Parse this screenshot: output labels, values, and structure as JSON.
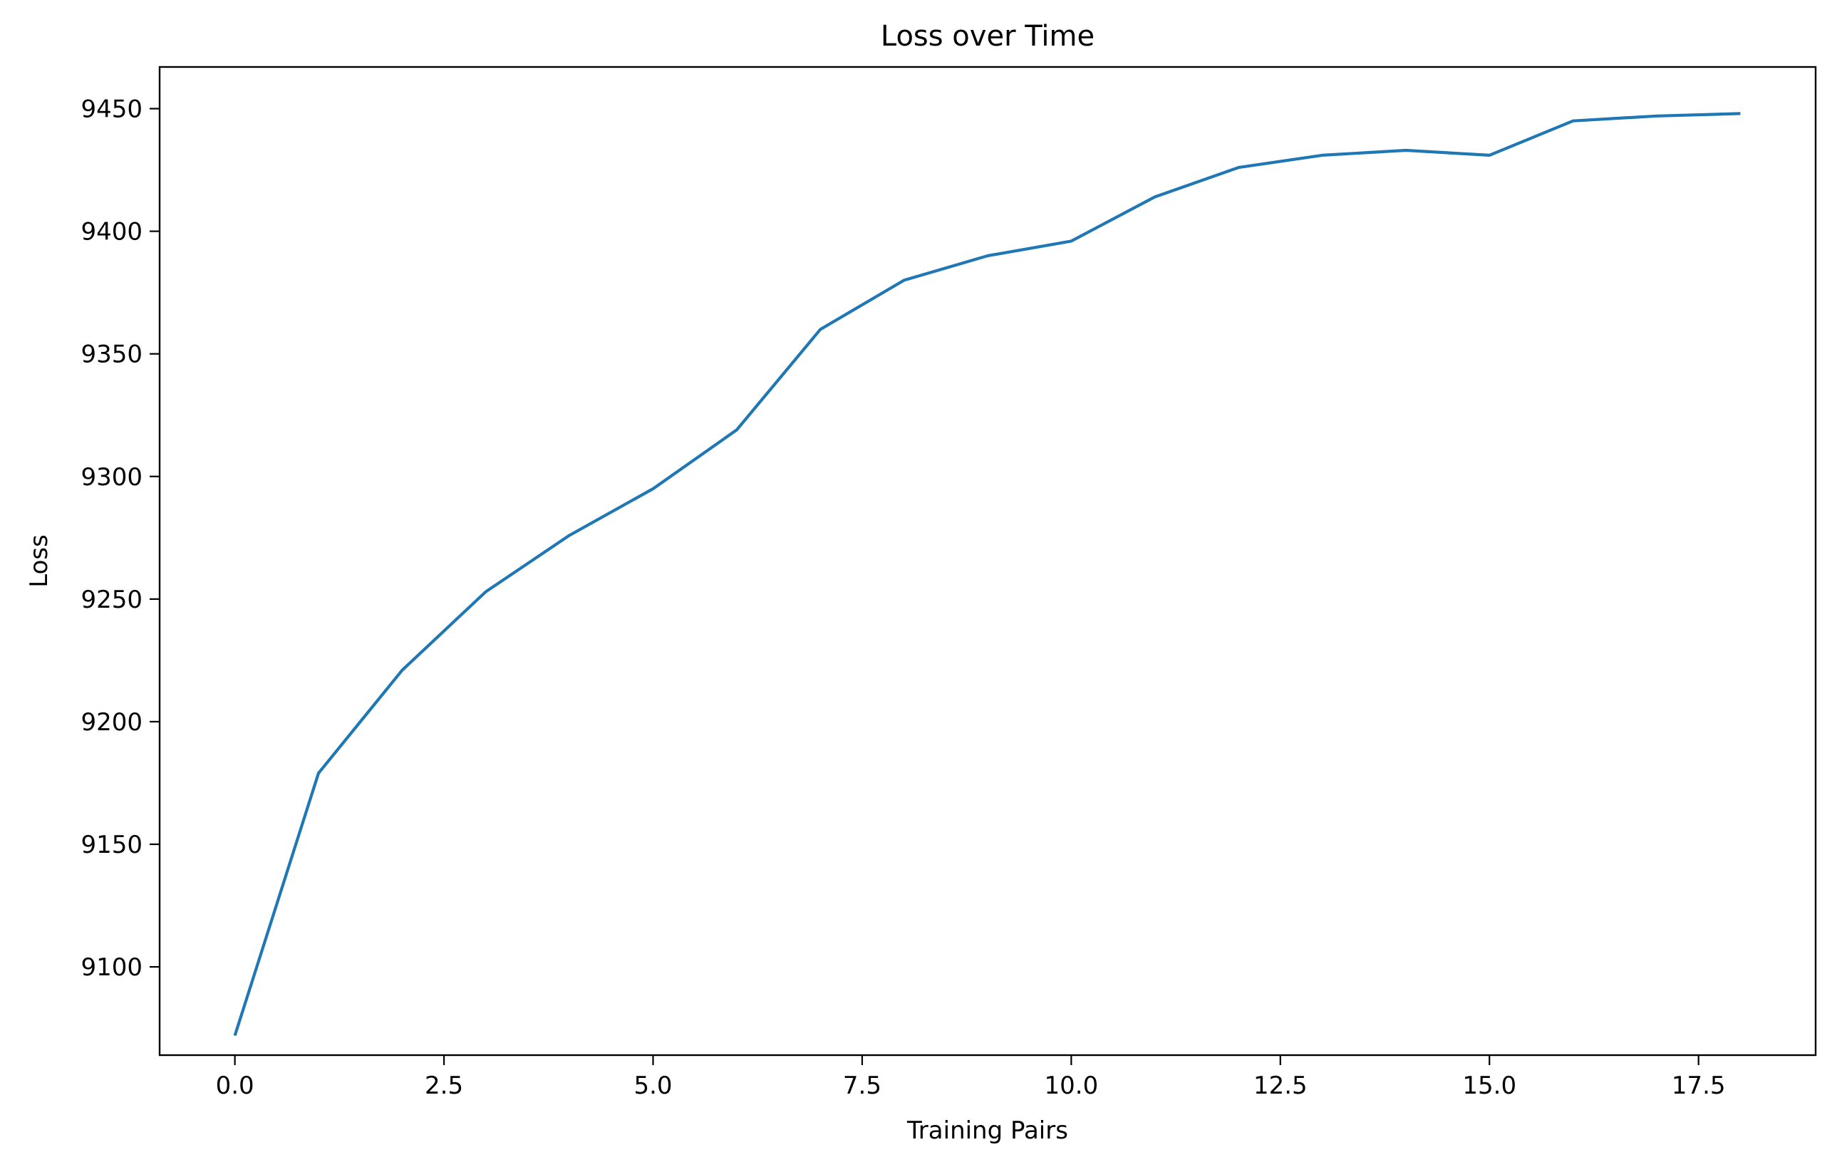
{
  "chart_data": {
    "type": "line",
    "title": "Loss over Time",
    "xlabel": "Training Pairs",
    "ylabel": "Loss",
    "xlim": [
      -0.9,
      18.9
    ],
    "ylim": [
      9064,
      9467
    ],
    "x_ticks": [
      0.0,
      2.5,
      5.0,
      7.5,
      10.0,
      12.5,
      15.0,
      17.5
    ],
    "x_tick_labels": [
      "0.0",
      "2.5",
      "5.0",
      "7.5",
      "10.0",
      "12.5",
      "15.0",
      "17.5"
    ],
    "y_ticks": [
      9100,
      9150,
      9200,
      9250,
      9300,
      9350,
      9400,
      9450
    ],
    "y_tick_labels": [
      "9100",
      "9150",
      "9200",
      "9250",
      "9300",
      "9350",
      "9400",
      "9450"
    ],
    "grid": false,
    "legend": false,
    "series": [
      {
        "color": "#1f77b4",
        "x": [
          0,
          1,
          2,
          3,
          4,
          5,
          6,
          7,
          8,
          9,
          10,
          11,
          12,
          13,
          14,
          15,
          16,
          17,
          18
        ],
        "values": [
          9072,
          9179,
          9221,
          9253,
          9276,
          9295,
          9319,
          9360,
          9380,
          9390,
          9396,
          9414,
          9426,
          9431,
          9433,
          9431,
          9445,
          9447,
          9448
        ]
      }
    ]
  }
}
